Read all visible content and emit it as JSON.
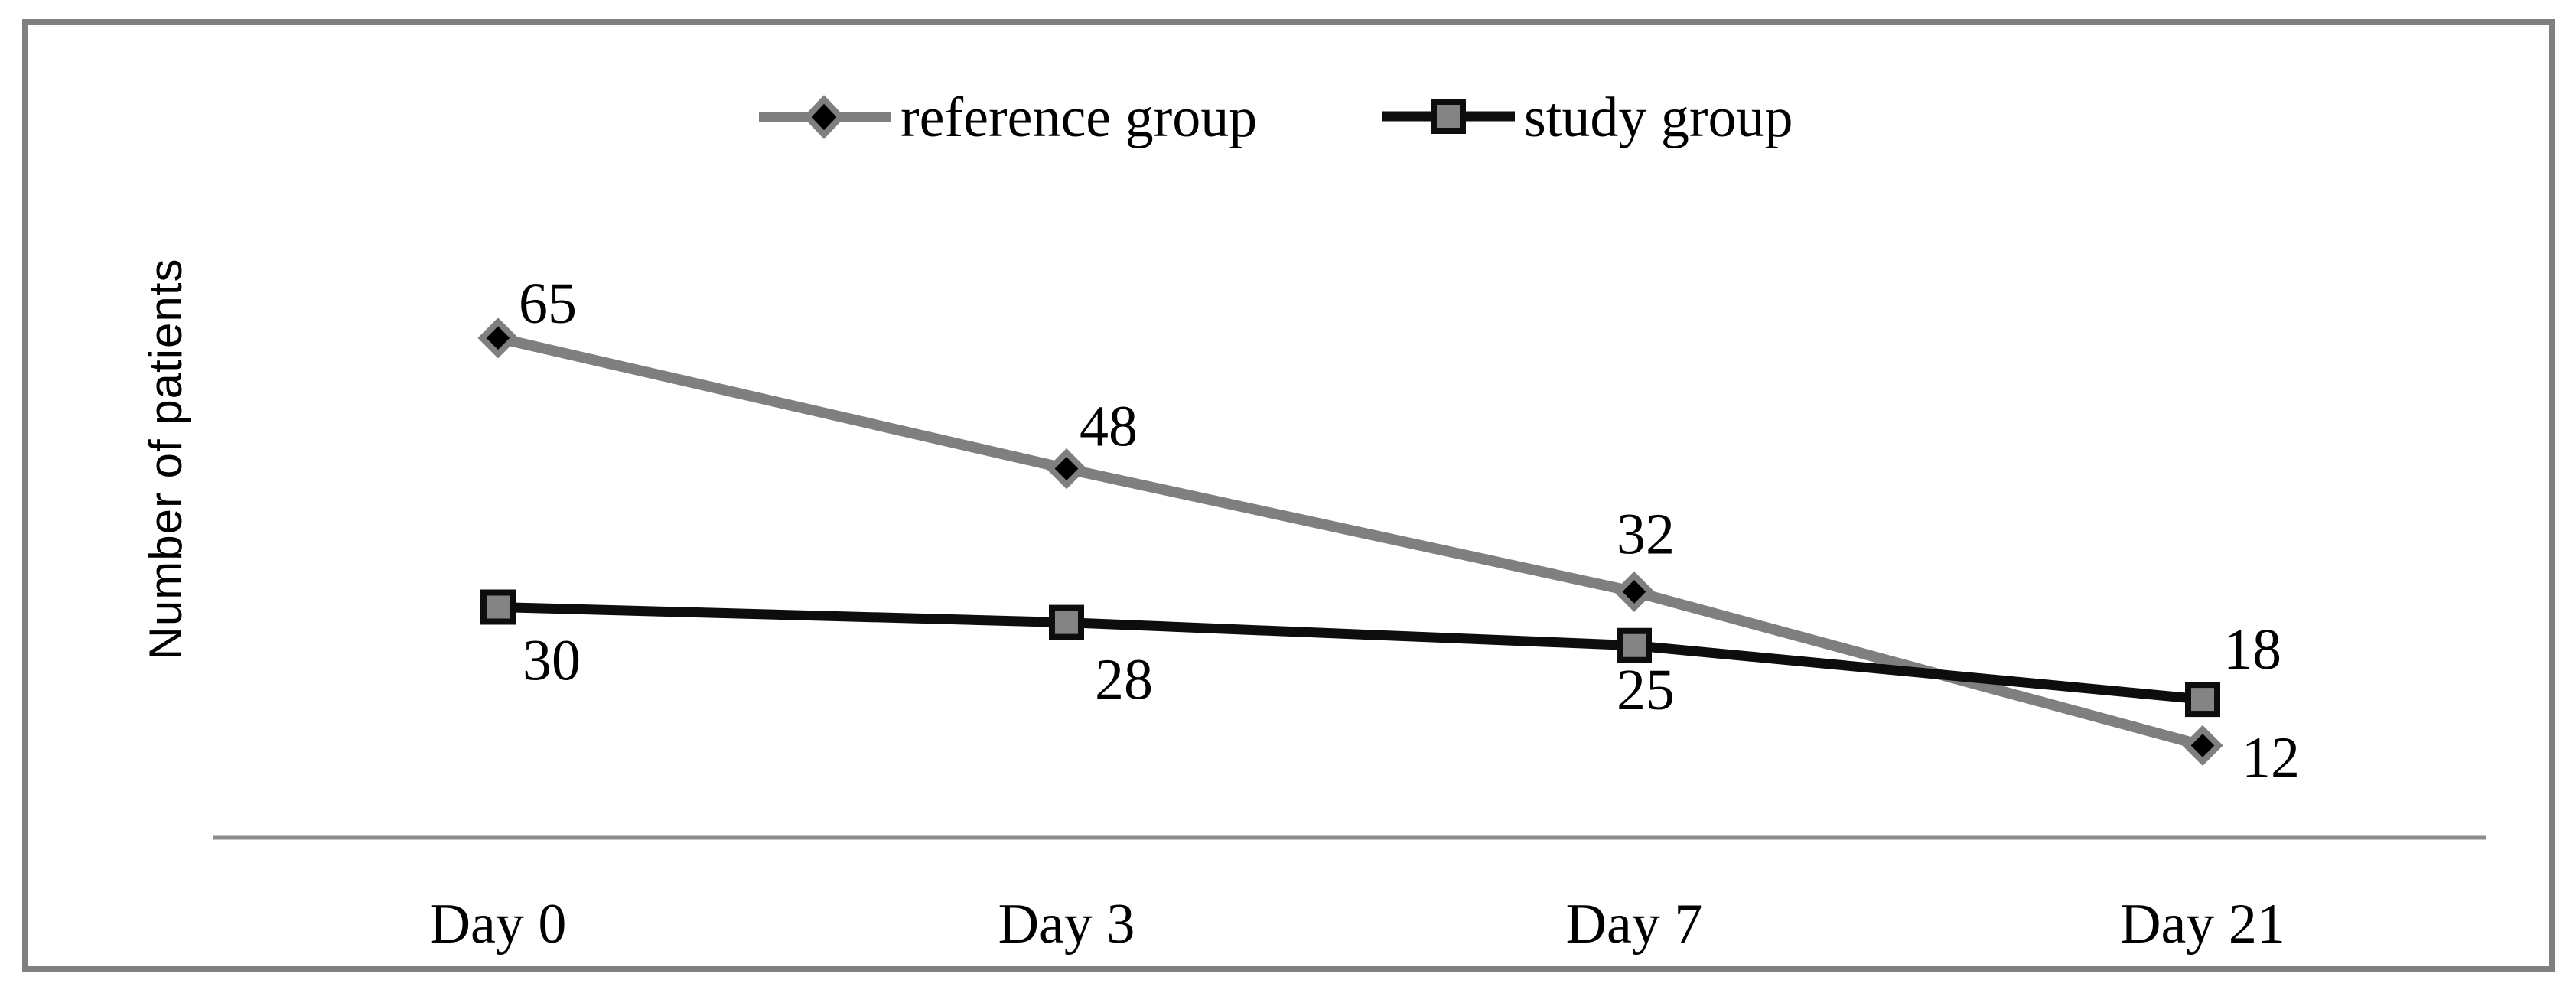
{
  "chart_data": {
    "type": "line",
    "title": "",
    "xlabel": "",
    "ylabel": "Number of patients",
    "categories": [
      "Day 0",
      "Day 3",
      "Day 7",
      "Day 21"
    ],
    "series": [
      {
        "name": "reference group",
        "values": [
          65,
          48,
          32,
          12
        ],
        "color": "#7f7f7f",
        "line_width": 14,
        "marker": "diamond",
        "marker_fill": "#000000",
        "marker_border": "#7f7f7f",
        "label_offsets": [
          [
            65,
            -45
          ],
          [
            55,
            -55
          ],
          [
            15,
            -75
          ],
          [
            89,
            16
          ]
        ]
      },
      {
        "name": "study group",
        "values": [
          30,
          28,
          25,
          18
        ],
        "color": "#0d0d0d",
        "line_width": 13,
        "marker": "square",
        "marker_fill": "#848484",
        "marker_border": "#0d0d0d",
        "label_offsets": [
          [
            70,
            70
          ],
          [
            75,
            75
          ],
          [
            15,
            58
          ],
          [
            65,
            -65
          ]
        ]
      }
    ],
    "ylim": [
      0,
      106
    ],
    "grid": false,
    "data_labels": true,
    "legend_position": "top-center",
    "axis_color": "#8c8c8c",
    "frame_color": "#808080",
    "background_color": "#ffffff",
    "text_color": "#000000"
  }
}
